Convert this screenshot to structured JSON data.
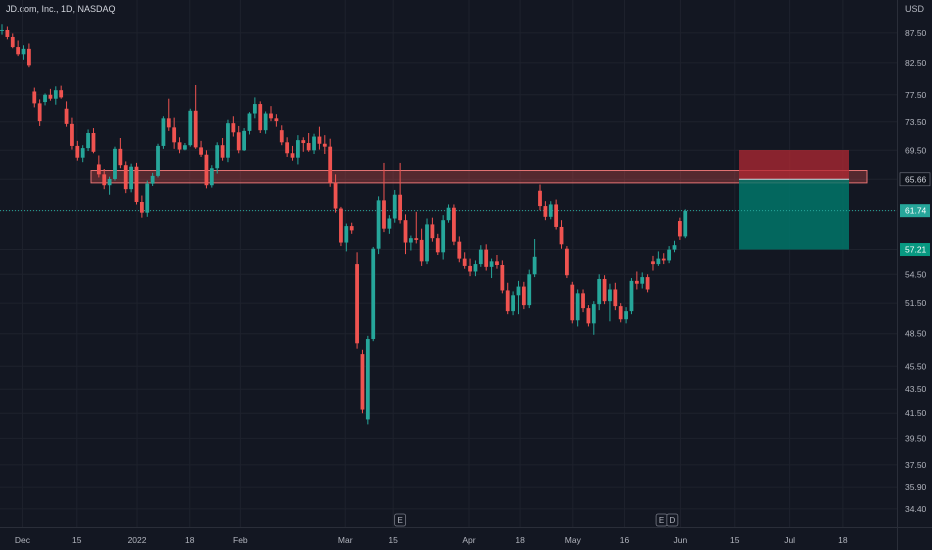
{
  "header": {
    "symbol": "JD.com, Inc., 1D, NASDAQ",
    "currency": "USD"
  },
  "chart_data": {
    "type": "candlestick",
    "title": "JD.com, Inc., 1D, NASDAQ",
    "y_scale": "log",
    "ylim": [
      33.2,
      90.8
    ],
    "y_ticks": [
      "87.50",
      "82.50",
      "77.50",
      "73.50",
      "69.50",
      "65.66",
      "61.74",
      "57.21",
      "54.50",
      "51.50",
      "48.50",
      "45.50",
      "43.50",
      "41.50",
      "39.50",
      "37.50",
      "35.90",
      "34.40"
    ],
    "x_ticks": [
      {
        "label": "Dec",
        "t": 3.8
      },
      {
        "label": "15",
        "t": 13.9
      },
      {
        "label": "2022",
        "t": 25.1
      },
      {
        "label": "18",
        "t": 34.9
      },
      {
        "label": "Feb",
        "t": 44.3
      },
      {
        "label": "Mar",
        "t": 63.8
      },
      {
        "label": "15",
        "t": 72.7
      },
      {
        "label": "Apr",
        "t": 86.8
      },
      {
        "label": "18",
        "t": 96.3
      },
      {
        "label": "May",
        "t": 106.1
      },
      {
        "label": "16",
        "t": 115.7
      },
      {
        "label": "Jun",
        "t": 126.1
      },
      {
        "label": "15",
        "t": 136.2
      },
      {
        "label": "Jul",
        "t": 146.4
      },
      {
        "label": "18",
        "t": 156.3
      }
    ],
    "candles": [
      [
        87.9,
        89.0,
        87.2,
        88.0
      ],
      [
        88.0,
        88.6,
        86.4,
        86.8
      ],
      [
        86.8,
        87.4,
        84.9,
        85.1
      ],
      [
        85.1,
        86.2,
        83.6,
        83.9
      ],
      [
        83.9,
        85.4,
        83.0,
        84.8
      ],
      [
        84.8,
        85.7,
        81.8,
        82.1
      ],
      [
        78.0,
        78.6,
        75.6,
        76.2
      ],
      [
        76.2,
        76.8,
        72.9,
        73.6
      ],
      [
        76.4,
        77.7,
        75.9,
        77.5
      ],
      [
        77.5,
        78.4,
        76.6,
        76.9
      ],
      [
        76.9,
        78.8,
        76.0,
        78.2
      ],
      [
        78.2,
        78.9,
        76.9,
        77.1
      ],
      [
        75.4,
        76.5,
        72.8,
        73.2
      ],
      [
        73.2,
        74.1,
        69.6,
        70.1
      ],
      [
        70.1,
        70.8,
        68.1,
        68.5
      ],
      [
        68.5,
        70.2,
        67.9,
        69.8
      ],
      [
        69.8,
        72.4,
        69.4,
        71.9
      ],
      [
        71.9,
        72.6,
        69.1,
        69.3
      ],
      [
        67.6,
        68.8,
        65.9,
        66.3
      ],
      [
        66.3,
        67.0,
        64.4,
        64.9
      ],
      [
        64.9,
        66.0,
        63.7,
        65.7
      ],
      [
        65.7,
        70.0,
        65.5,
        69.7
      ],
      [
        69.7,
        71.2,
        67.1,
        67.5
      ],
      [
        67.5,
        68.0,
        63.9,
        64.4
      ],
      [
        64.4,
        67.7,
        64.0,
        67.3
      ],
      [
        67.3,
        67.8,
        62.5,
        62.8
      ],
      [
        62.8,
        63.6,
        60.9,
        61.5
      ],
      [
        61.5,
        65.5,
        61.0,
        65.1
      ],
      [
        65.1,
        66.5,
        64.8,
        66.1
      ],
      [
        66.1,
        70.4,
        65.9,
        70.1
      ],
      [
        70.1,
        74.3,
        69.7,
        74.0
      ],
      [
        74.0,
        76.9,
        72.2,
        72.7
      ],
      [
        72.7,
        74.1,
        69.7,
        70.6
      ],
      [
        70.6,
        71.3,
        69.1,
        69.6
      ],
      [
        69.6,
        70.5,
        69.5,
        70.2
      ],
      [
        70.2,
        75.4,
        70.0,
        75.1
      ],
      [
        75.1,
        79.0,
        69.7,
        69.9
      ],
      [
        69.9,
        70.8,
        68.6,
        68.9
      ],
      [
        68.9,
        69.5,
        64.5,
        64.9
      ],
      [
        64.9,
        67.5,
        64.6,
        67.1
      ],
      [
        67.1,
        70.6,
        66.4,
        70.2
      ],
      [
        70.2,
        71.2,
        68.1,
        68.5
      ],
      [
        68.5,
        73.8,
        67.9,
        73.3
      ],
      [
        73.3,
        74.3,
        71.4,
        72.0
      ],
      [
        72.0,
        72.9,
        69.1,
        69.5
      ],
      [
        69.5,
        72.6,
        69.4,
        72.2
      ],
      [
        72.2,
        74.9,
        71.7,
        74.7
      ],
      [
        74.7,
        77.1,
        74.0,
        76.1
      ],
      [
        76.1,
        76.5,
        71.9,
        72.3
      ],
      [
        72.3,
        75.0,
        71.8,
        74.7
      ],
      [
        74.7,
        75.8,
        73.6,
        74.0
      ],
      [
        74.0,
        74.6,
        72.8,
        73.6
      ],
      [
        72.3,
        73.0,
        70.2,
        70.6
      ],
      [
        70.6,
        71.3,
        68.6,
        69.1
      ],
      [
        69.1,
        70.1,
        68.1,
        68.5
      ],
      [
        68.5,
        71.6,
        67.6,
        70.9
      ],
      [
        70.9,
        71.3,
        69.3,
        70.5
      ],
      [
        70.5,
        71.9,
        69.3,
        69.5
      ],
      [
        69.5,
        71.8,
        69.0,
        71.4
      ],
      [
        71.4,
        72.8,
        69.6,
        70.4
      ],
      [
        70.4,
        71.6,
        69.0,
        70.0
      ],
      [
        70.0,
        71.1,
        64.7,
        65.2
      ],
      [
        65.2,
        66.3,
        61.5,
        62.0
      ],
      [
        62.0,
        62.2,
        57.6,
        58.0
      ],
      [
        58.0,
        60.2,
        57.0,
        59.9
      ],
      [
        59.9,
        60.3,
        59.0,
        59.4
      ],
      [
        55.6,
        56.9,
        47.1,
        47.6
      ],
      [
        46.6,
        47.0,
        41.5,
        41.8
      ],
      [
        41.0,
        48.3,
        40.6,
        48.0
      ],
      [
        48.0,
        57.5,
        47.8,
        57.3
      ],
      [
        57.3,
        63.5,
        56.7,
        63.0
      ],
      [
        63.0,
        67.8,
        59.2,
        59.6
      ],
      [
        59.6,
        61.2,
        59.0,
        60.8
      ],
      [
        60.8,
        64.3,
        60.3,
        63.7
      ],
      [
        63.7,
        67.8,
        60.2,
        60.6
      ],
      [
        60.6,
        61.3,
        56.7,
        58.0
      ],
      [
        58.0,
        58.8,
        57.1,
        58.5
      ],
      [
        58.5,
        61.6,
        57.9,
        58.3
      ],
      [
        58.3,
        59.6,
        55.4,
        55.9
      ],
      [
        55.9,
        60.8,
        55.6,
        60.1
      ],
      [
        60.1,
        60.9,
        58.1,
        58.5
      ],
      [
        58.5,
        59.0,
        56.6,
        56.9
      ],
      [
        56.9,
        61.2,
        56.1,
        60.6
      ],
      [
        60.6,
        62.5,
        60.3,
        62.1
      ],
      [
        62.1,
        62.5,
        57.7,
        58.1
      ],
      [
        58.1,
        58.7,
        55.8,
        56.2
      ],
      [
        56.2,
        56.9,
        55.1,
        55.4
      ],
      [
        55.4,
        56.2,
        54.3,
        54.8
      ],
      [
        54.8,
        56.0,
        54.3,
        55.6
      ],
      [
        55.6,
        57.7,
        55.3,
        57.2
      ],
      [
        57.2,
        57.8,
        54.9,
        55.3
      ],
      [
        55.3,
        56.2,
        54.1,
        55.9
      ],
      [
        55.9,
        56.6,
        55.1,
        55.5
      ],
      [
        55.5,
        56.0,
        52.5,
        52.8
      ],
      [
        52.8,
        53.6,
        50.4,
        50.7
      ],
      [
        50.7,
        52.7,
        50.3,
        52.3
      ],
      [
        52.3,
        53.8,
        50.4,
        53.2
      ],
      [
        53.2,
        53.7,
        50.9,
        51.3
      ],
      [
        51.3,
        55.0,
        51.0,
        54.5
      ],
      [
        54.5,
        58.4,
        54.2,
        56.4
      ],
      [
        64.2,
        65.0,
        61.8,
        62.3
      ],
      [
        62.3,
        62.9,
        60.6,
        61.0
      ],
      [
        61.0,
        62.9,
        60.7,
        62.5
      ],
      [
        62.5,
        63.1,
        59.5,
        59.8
      ],
      [
        59.8,
        60.6,
        57.3,
        57.8
      ],
      [
        57.3,
        57.6,
        54.1,
        54.4
      ],
      [
        53.4,
        53.7,
        49.5,
        49.8
      ],
      [
        49.8,
        52.9,
        49.2,
        52.5
      ],
      [
        52.5,
        52.9,
        50.6,
        51.0
      ],
      [
        51.0,
        51.3,
        49.2,
        49.5
      ],
      [
        49.5,
        51.7,
        48.4,
        51.4
      ],
      [
        51.4,
        54.5,
        50.8,
        54.0
      ],
      [
        54.0,
        54.4,
        51.4,
        51.7
      ],
      [
        51.7,
        53.5,
        49.7,
        52.9
      ],
      [
        52.9,
        53.6,
        50.8,
        51.2
      ],
      [
        51.2,
        51.5,
        49.6,
        49.9
      ],
      [
        49.9,
        51.1,
        49.5,
        50.7
      ],
      [
        50.7,
        54.1,
        50.4,
        53.8
      ],
      [
        53.8,
        54.8,
        52.9,
        53.5
      ],
      [
        53.5,
        54.7,
        53.0,
        54.2
      ],
      [
        54.2,
        54.5,
        52.6,
        52.9
      ],
      [
        55.9,
        56.5,
        54.9,
        55.6
      ],
      [
        55.6,
        57.0,
        55.4,
        56.2
      ],
      [
        56.2,
        56.8,
        55.6,
        56.0
      ],
      [
        56.0,
        57.6,
        55.7,
        57.2
      ],
      [
        57.2,
        58.2,
        56.9,
        57.7
      ],
      [
        60.5,
        60.9,
        58.3,
        58.7
      ],
      [
        58.7,
        61.9,
        58.5,
        61.7
      ]
    ],
    "horizontal_zone": {
      "low": 65.2,
      "high": 66.8
    },
    "position": {
      "entry": 65.66,
      "stop": 69.54,
      "target": 57.21,
      "last": 61.74
    },
    "events": [
      "E",
      "E",
      "D"
    ]
  },
  "colors": {
    "background": "#131722",
    "up": "#26a69a",
    "down": "#ef5350",
    "zone_fill": "rgba(239,83,80,0.30)",
    "zone_border": "#e57373",
    "stop_fill": "rgba(178,40,51,0.75)",
    "target_fill": "rgba(0,121,107,0.82)",
    "entry_tag": "#0f131c",
    "last_tag": "#26a69a",
    "stop_tag": "#f23645",
    "target_tag": "#089981",
    "text": "#b2b5be"
  }
}
